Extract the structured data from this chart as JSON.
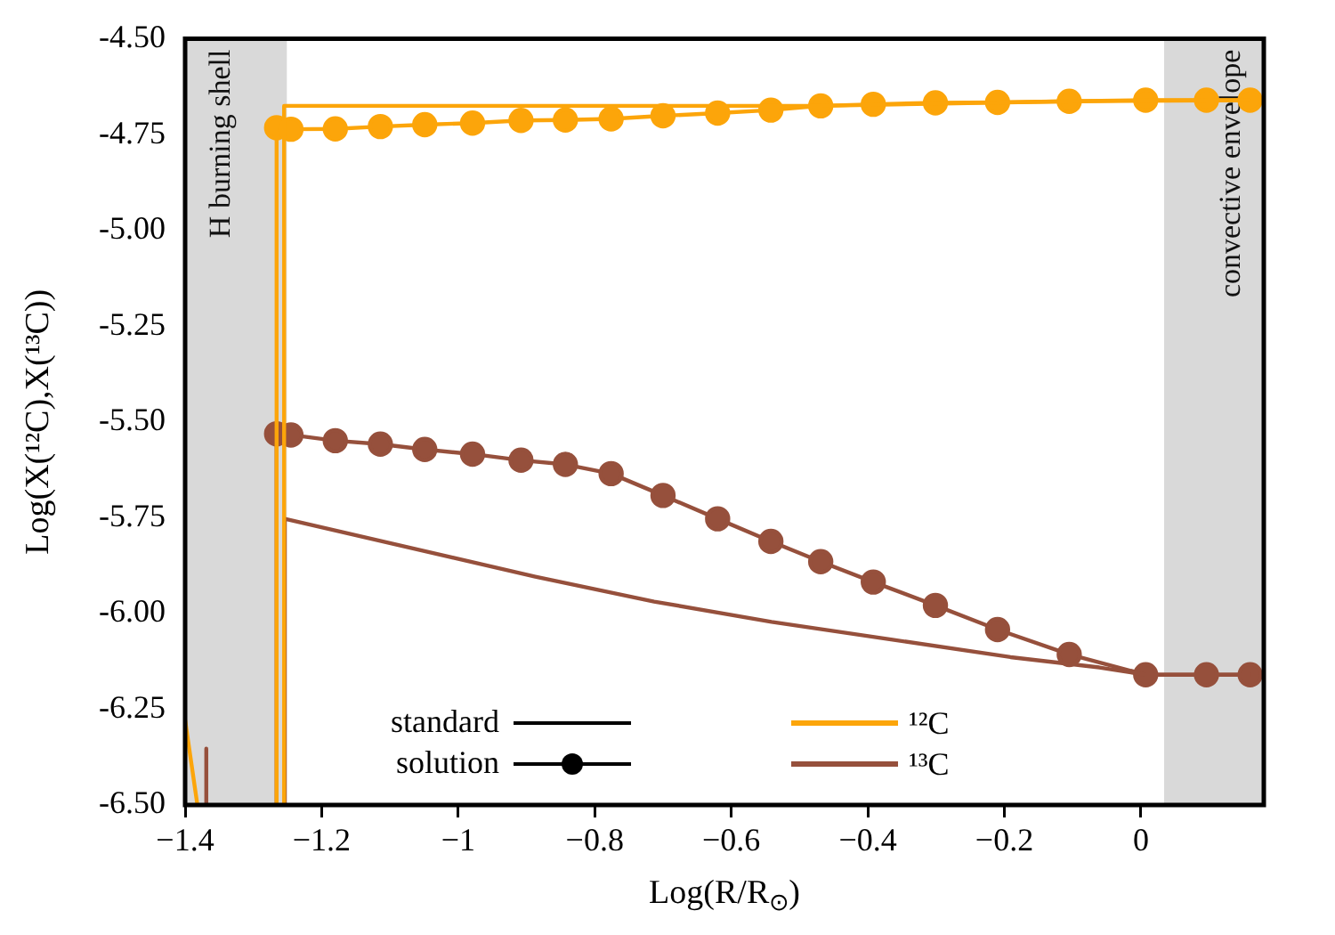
{
  "chart_data": {
    "type": "line",
    "xlabel": "Log(R/R$_{⊙}$)",
    "ylabel": "Log(X(¹²C),X(¹³C))",
    "xlim": [
      -1.4,
      0.18
    ],
    "ylim": [
      -6.5,
      -4.5
    ],
    "xticks": [
      {
        "value": -1.4,
        "label": "−1.4"
      },
      {
        "value": -1.2,
        "label": "−1.2"
      },
      {
        "value": -1,
        "label": "−1"
      },
      {
        "value": -0.8,
        "label": "−0.8"
      },
      {
        "value": -0.6,
        "label": "−0.6"
      },
      {
        "value": -0.4,
        "label": "−0.4"
      },
      {
        "value": -0.2,
        "label": "−0.2"
      },
      0
    ],
    "yticks": [
      {
        "value": -4.5,
        "label": "-4.50"
      },
      {
        "value": -4.75,
        "label": "-4.75"
      },
      {
        "value": -5,
        "label": "-5.00"
      },
      {
        "value": -5.25,
        "label": "-5.25"
      },
      {
        "value": -5.5,
        "label": "-5.50"
      },
      {
        "value": -5.75,
        "label": "-5.75"
      },
      {
        "value": -6,
        "label": "-6.00"
      },
      {
        "value": -6.25,
        "label": "-6.25"
      },
      {
        "value": -6.5,
        "label": "-6.50"
      }
    ],
    "grid": false,
    "legend": "bottom",
    "annotations": [
      "standard",
      "solution"
    ],
    "bands": [
      {
        "axis": "x",
        "from": -1.4,
        "to": -1.251,
        "label": "H burning shell",
        "color": "#d9d9d9"
      },
      {
        "axis": "x",
        "from": 0.034,
        "to": 0.18,
        "label": "convective envelope",
        "color": "#d9d9d9"
      }
    ],
    "series": [
      {
        "name": "¹²C",
        "color": "#fca50a",
        "marker": "none",
        "x": [
          -1.4,
          -1.382,
          -1.3,
          -1.255,
          -1.255,
          -0.469,
          -0.105,
          0.16
        ],
        "values": [
          -6.279,
          -6.5,
          null,
          -6.5,
          -4.675,
          -4.675,
          -4.663,
          -4.66
        ]
      },
      {
        "name": "¹³C",
        "color": "#96503c",
        "marker": "none",
        "x": [
          -1.369,
          -1.369,
          -1.3,
          -1.254,
          -1.254,
          -0.887,
          -0.713,
          -0.541,
          -0.366,
          -0.191,
          -0.061,
          0.007,
          0.16
        ],
        "values": [
          -6.353,
          -6.5,
          null,
          -6.5,
          -5.753,
          -5.904,
          -5.969,
          -6.022,
          -6.068,
          -6.114,
          -6.141,
          -6.16,
          -6.16
        ]
      },
      {
        "color": "#fca50a",
        "marker": "circle",
        "x": [
          -1.266,
          -1.266,
          -1.245,
          -1.18,
          -1.114,
          -1.049,
          -0.979,
          -0.908,
          -0.843,
          -0.776,
          -0.7,
          -0.62,
          -0.542,
          -0.469,
          -0.392,
          -0.301,
          -0.21,
          -0.105,
          0.007,
          0.096,
          0.16
        ],
        "values": [
          -6.5,
          -4.732,
          -4.736,
          -4.735,
          -4.729,
          -4.724,
          -4.72,
          -4.713,
          -4.712,
          -4.709,
          -4.701,
          -4.694,
          -4.686,
          -4.675,
          -4.671,
          -4.667,
          -4.666,
          -4.663,
          -4.66,
          -4.66,
          -4.66
        ]
      },
      {
        "color": "#96503c",
        "marker": "circle",
        "x": [
          -1.266,
          -1.266,
          -1.245,
          -1.18,
          -1.114,
          -1.049,
          -0.979,
          -0.908,
          -0.843,
          -0.776,
          -0.7,
          -0.62,
          -0.542,
          -0.469,
          -0.392,
          -0.301,
          -0.21,
          -0.105,
          0.007,
          0.096,
          0.16
        ],
        "values": [
          -6.5,
          -5.531,
          -5.534,
          -5.549,
          -5.558,
          -5.572,
          -5.584,
          -5.6,
          -5.611,
          -5.635,
          -5.692,
          -5.753,
          -5.812,
          -5.865,
          -5.918,
          -5.979,
          -6.042,
          -6.107,
          -6.16,
          -6.16,
          -6.16
        ]
      }
    ]
  }
}
